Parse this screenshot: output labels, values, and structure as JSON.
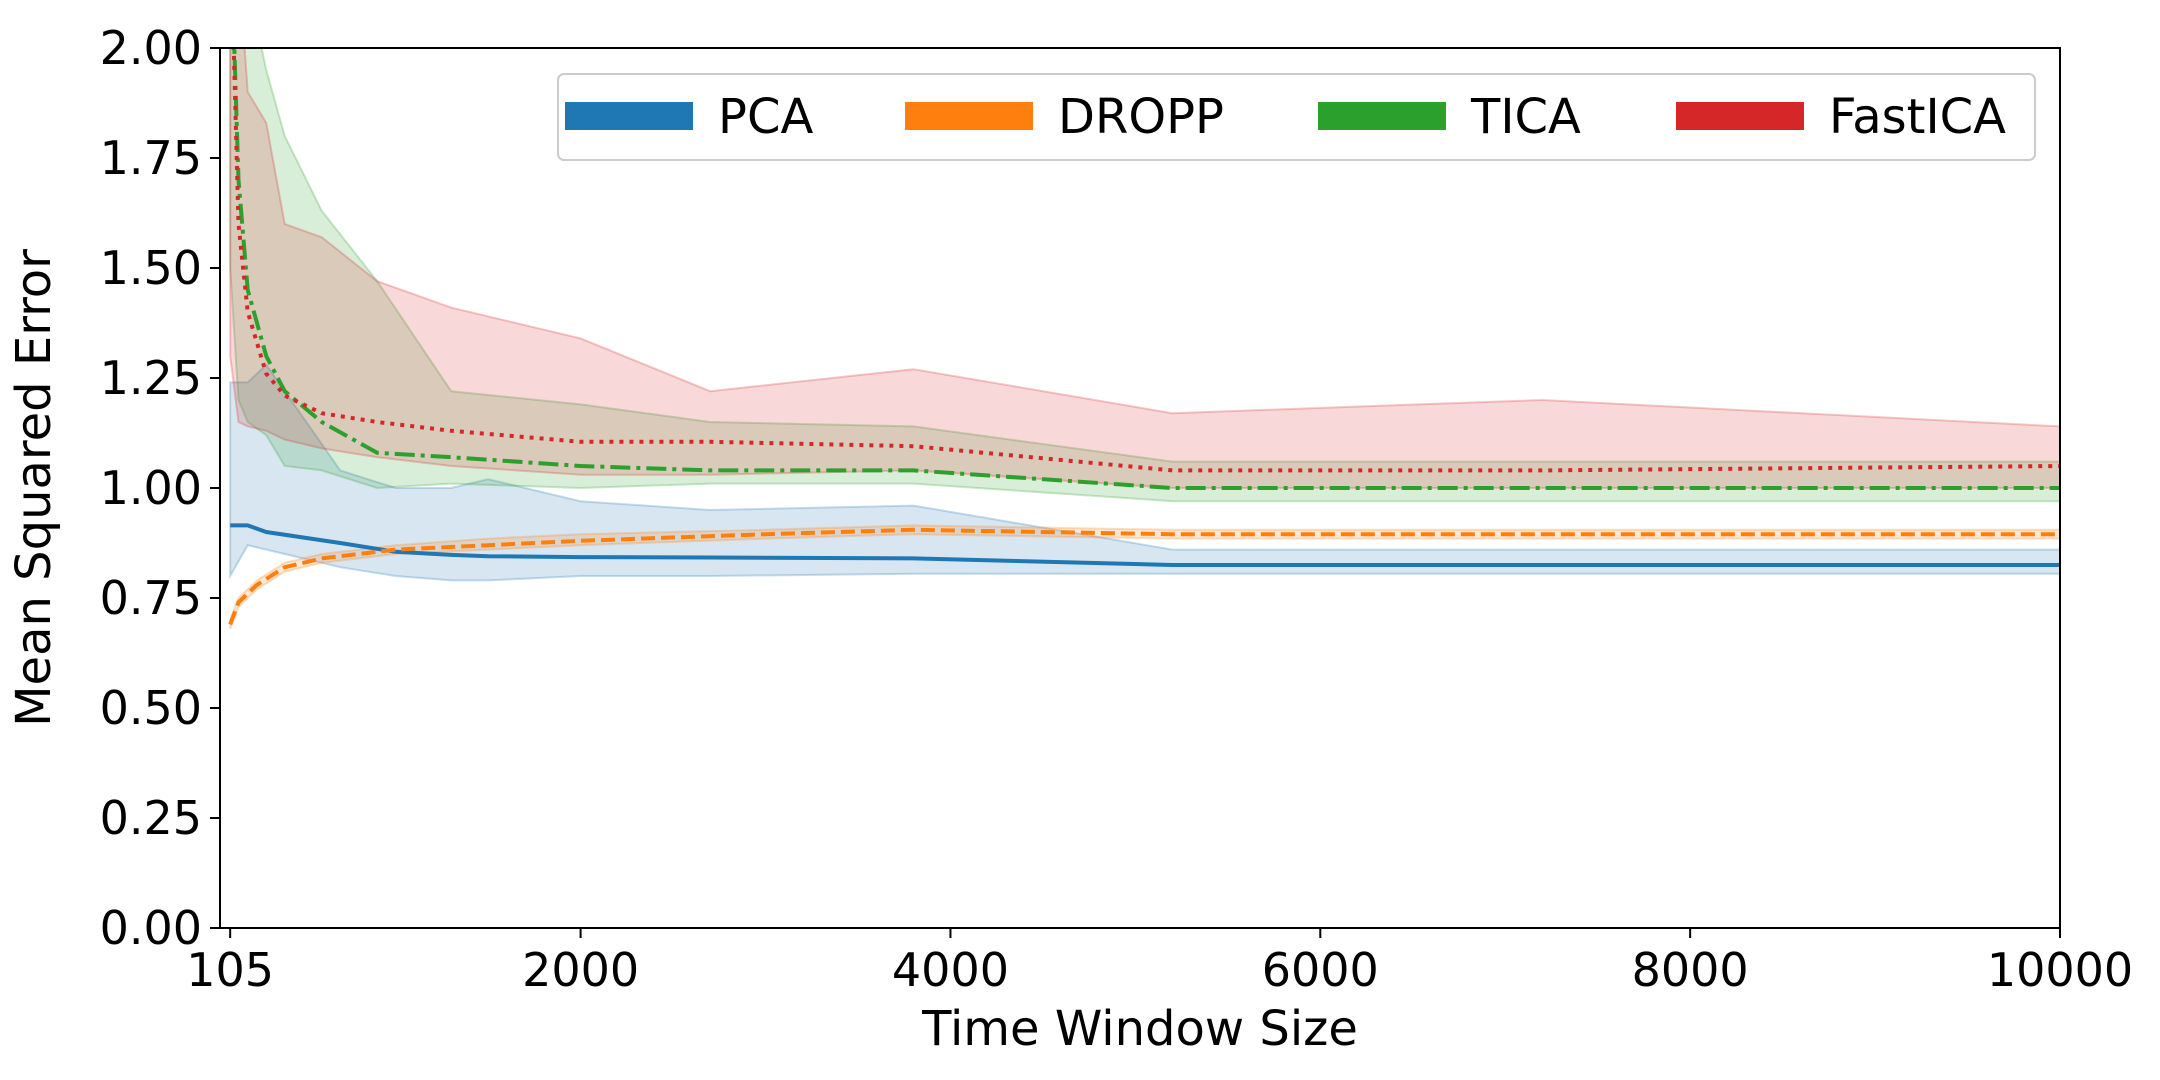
{
  "chart_data": {
    "type": "line",
    "title": "",
    "xlabel": "Time Window Size",
    "ylabel": "Mean Squared Error",
    "xlim": [
      50,
      10000
    ],
    "ylim": [
      0,
      2
    ],
    "x_ticks": [
      105,
      2000,
      4000,
      6000,
      8000,
      10000
    ],
    "x_tick_labels": [
      "105",
      "2000",
      "4000",
      "6000",
      "8000",
      "10000"
    ],
    "y_ticks": [
      0,
      0.25,
      0.5,
      0.75,
      1.0,
      1.25,
      1.5,
      1.75,
      2.0
    ],
    "y_tick_labels": [
      "0.00",
      "0.25",
      "0.50",
      "0.75",
      "1.00",
      "1.25",
      "1.50",
      "1.75",
      "2.00"
    ],
    "grid": false,
    "legend_position": "top-right",
    "series": [
      {
        "name": "PCA",
        "color": "#1f77b4",
        "dash": "solid",
        "x": [
          105,
          200,
          300,
          700,
          1000,
          1300,
          1500,
          2000,
          2700,
          3800,
          5200,
          7200,
          10000
        ],
        "y": [
          0.915,
          0.915,
          0.9,
          0.875,
          0.855,
          0.848,
          0.845,
          0.843,
          0.842,
          0.84,
          0.825,
          0.825,
          0.825
        ],
        "lower": [
          0.8,
          0.87,
          0.86,
          0.82,
          0.8,
          0.79,
          0.79,
          0.8,
          0.8,
          0.805,
          0.805,
          0.805,
          0.805
        ],
        "upper": [
          1.24,
          1.24,
          1.28,
          1.04,
          1.0,
          1.0,
          1.02,
          0.97,
          0.95,
          0.96,
          0.86,
          0.86,
          0.86
        ]
      },
      {
        "name": "DROPP",
        "color": "#ff7f0e",
        "dash": "dashed",
        "x": [
          105,
          150,
          250,
          400,
          600,
          800,
          1000,
          1500,
          2000,
          3000,
          3800,
          5200,
          7000,
          10000
        ],
        "y": [
          0.69,
          0.74,
          0.78,
          0.82,
          0.84,
          0.85,
          0.86,
          0.87,
          0.88,
          0.895,
          0.905,
          0.895,
          0.895,
          0.895
        ],
        "lower": [
          0.68,
          0.73,
          0.77,
          0.81,
          0.83,
          0.84,
          0.85,
          0.86,
          0.87,
          0.885,
          0.895,
          0.885,
          0.885,
          0.885
        ],
        "upper": [
          0.7,
          0.75,
          0.79,
          0.83,
          0.85,
          0.86,
          0.87,
          0.885,
          0.895,
          0.905,
          0.915,
          0.905,
          0.905,
          0.905
        ]
      },
      {
        "name": "TICA",
        "color": "#2ca02c",
        "dash": "dashdot",
        "x": [
          105,
          150,
          200,
          300,
          400,
          600,
          900,
          1300,
          2000,
          2700,
          3800,
          5200,
          7200,
          10000
        ],
        "y": [
          2.3,
          1.7,
          1.45,
          1.3,
          1.22,
          1.15,
          1.08,
          1.07,
          1.05,
          1.04,
          1.04,
          1.0,
          1.0,
          1.0
        ],
        "lower": [
          1.5,
          1.2,
          1.15,
          1.12,
          1.05,
          1.04,
          1.0,
          1.01,
          1.0,
          1.01,
          1.01,
          0.97,
          0.97,
          0.97
        ],
        "upper": [
          2.5,
          2.3,
          2.15,
          1.95,
          1.8,
          1.63,
          1.47,
          1.22,
          1.19,
          1.15,
          1.14,
          1.06,
          1.06,
          1.06
        ]
      },
      {
        "name": "FastICA",
        "color": "#d62728",
        "dash": "dotted",
        "x": [
          105,
          150,
          200,
          300,
          400,
          600,
          900,
          1300,
          2000,
          2700,
          3800,
          5200,
          7200,
          10000
        ],
        "y": [
          2.3,
          1.6,
          1.4,
          1.26,
          1.21,
          1.17,
          1.15,
          1.13,
          1.105,
          1.105,
          1.095,
          1.04,
          1.04,
          1.05
        ],
        "lower": [
          1.3,
          1.15,
          1.14,
          1.13,
          1.11,
          1.09,
          1.07,
          1.05,
          1.03,
          1.03,
          1.04,
          1.0,
          1.0,
          1.0
        ],
        "upper": [
          2.5,
          2.2,
          1.9,
          1.83,
          1.6,
          1.57,
          1.47,
          1.41,
          1.34,
          1.22,
          1.27,
          1.17,
          1.2,
          1.14
        ]
      }
    ]
  }
}
